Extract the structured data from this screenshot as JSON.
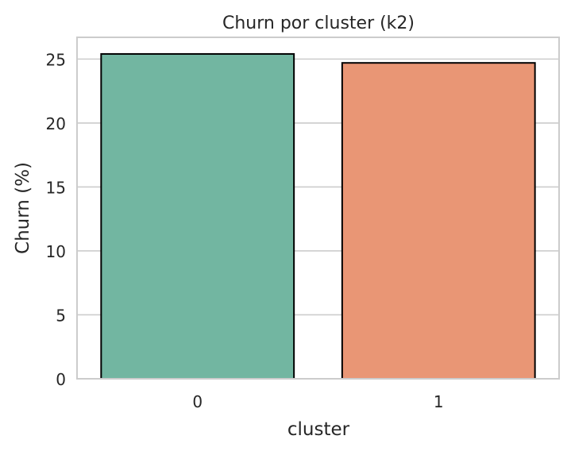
{
  "chart_data": {
    "type": "bar",
    "title": "Churn por cluster (k2)",
    "xlabel": "cluster",
    "ylabel": "Churn (%)",
    "categories": [
      "0",
      "1"
    ],
    "values": [
      25.4,
      24.7
    ],
    "colors": [
      "#72b6a1",
      "#e99675"
    ],
    "edge_color": "#000000",
    "ylim": [
      0,
      26.7
    ],
    "yticks": [
      0,
      5,
      10,
      15,
      20,
      25
    ],
    "ytick_labels": [
      "0",
      "5",
      "10",
      "15",
      "20",
      "25"
    ],
    "grid": "horizontal",
    "grid_color": "#cccccc",
    "spine_color": "#cccccc",
    "legend": "none"
  }
}
